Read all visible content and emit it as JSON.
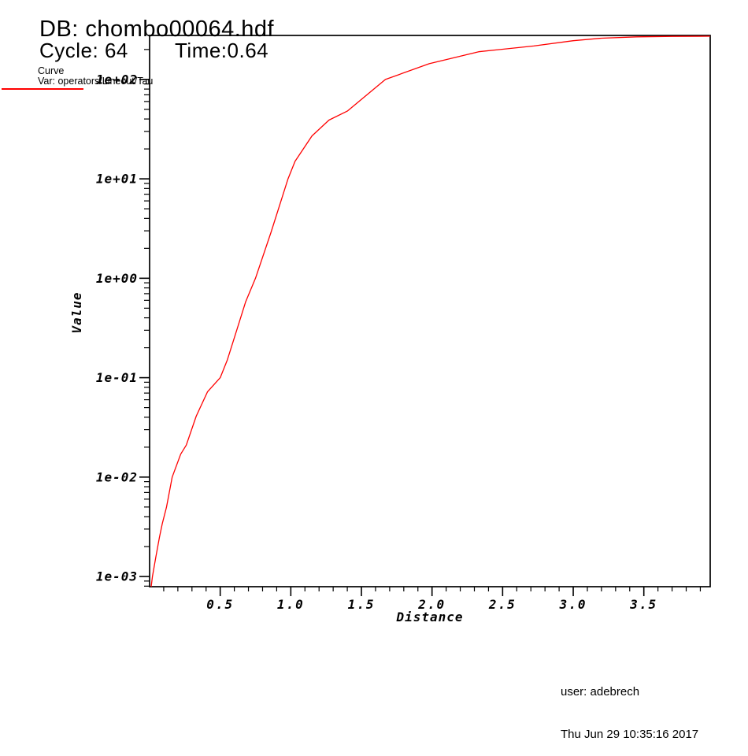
{
  "header": {
    "db_title": "DB: chombo00064.hdf",
    "cycle_label": "Cycle: 64",
    "time_label": "Time:0.64"
  },
  "legend": {
    "plot_type": "Curve",
    "var_label": "Var: operators/Lineout/Tau",
    "line_color": "#ff0000"
  },
  "footer": {
    "user": "user: adebrech",
    "timestamp": "Thu Jun 29 10:35:16 2017"
  },
  "chart_data": {
    "type": "line",
    "title": "",
    "xlabel": "Distance",
    "ylabel": "Value",
    "yscale": "log",
    "grid": false,
    "legend_position": "top-left",
    "xlim": [
      0,
      3.97
    ],
    "ylim": [
      0.00079,
      277
    ],
    "x_major_ticks": [
      0.5,
      1.0,
      1.5,
      2.0,
      2.5,
      3.0,
      3.5
    ],
    "x_tick_labels": [
      "0.5",
      "1.0",
      "1.5",
      "2.0",
      "2.5",
      "3.0",
      "3.5"
    ],
    "x_minor_step": 0.1,
    "y_major_ticks": [
      100,
      10,
      1,
      0.1,
      0.01,
      0.001
    ],
    "y_tick_labels": [
      "1e+02",
      "1e+01",
      "1e+00",
      "1e-01",
      "1e-02",
      "1e-03"
    ],
    "frame_color": "#000000",
    "series": [
      {
        "name": "operators/Lineout/Tau",
        "color": "#ff0000",
        "points": [
          [
            0.011,
            0.00079
          ],
          [
            0.02,
            0.001
          ],
          [
            0.045,
            0.0016
          ],
          [
            0.07,
            0.0025
          ],
          [
            0.09,
            0.0034
          ],
          [
            0.12,
            0.005
          ],
          [
            0.16,
            0.01
          ],
          [
            0.22,
            0.017
          ],
          [
            0.26,
            0.021
          ],
          [
            0.33,
            0.041
          ],
          [
            0.41,
            0.072
          ],
          [
            0.5,
            0.1
          ],
          [
            0.55,
            0.15
          ],
          [
            0.62,
            0.31
          ],
          [
            0.68,
            0.58
          ],
          [
            0.75,
            1.0
          ],
          [
            0.86,
            2.9
          ],
          [
            0.98,
            10.0
          ],
          [
            1.03,
            15.0
          ],
          [
            1.15,
            27.0
          ],
          [
            1.27,
            39.0
          ],
          [
            1.4,
            48.0
          ],
          [
            1.67,
            100.0
          ],
          [
            1.98,
            144.0
          ],
          [
            2.33,
            190.0
          ],
          [
            2.72,
            217.0
          ],
          [
            3.0,
            245.0
          ],
          [
            3.2,
            260.0
          ],
          [
            3.45,
            268.0
          ],
          [
            3.7,
            271.0
          ],
          [
            3.97,
            272.0
          ]
        ]
      }
    ]
  }
}
